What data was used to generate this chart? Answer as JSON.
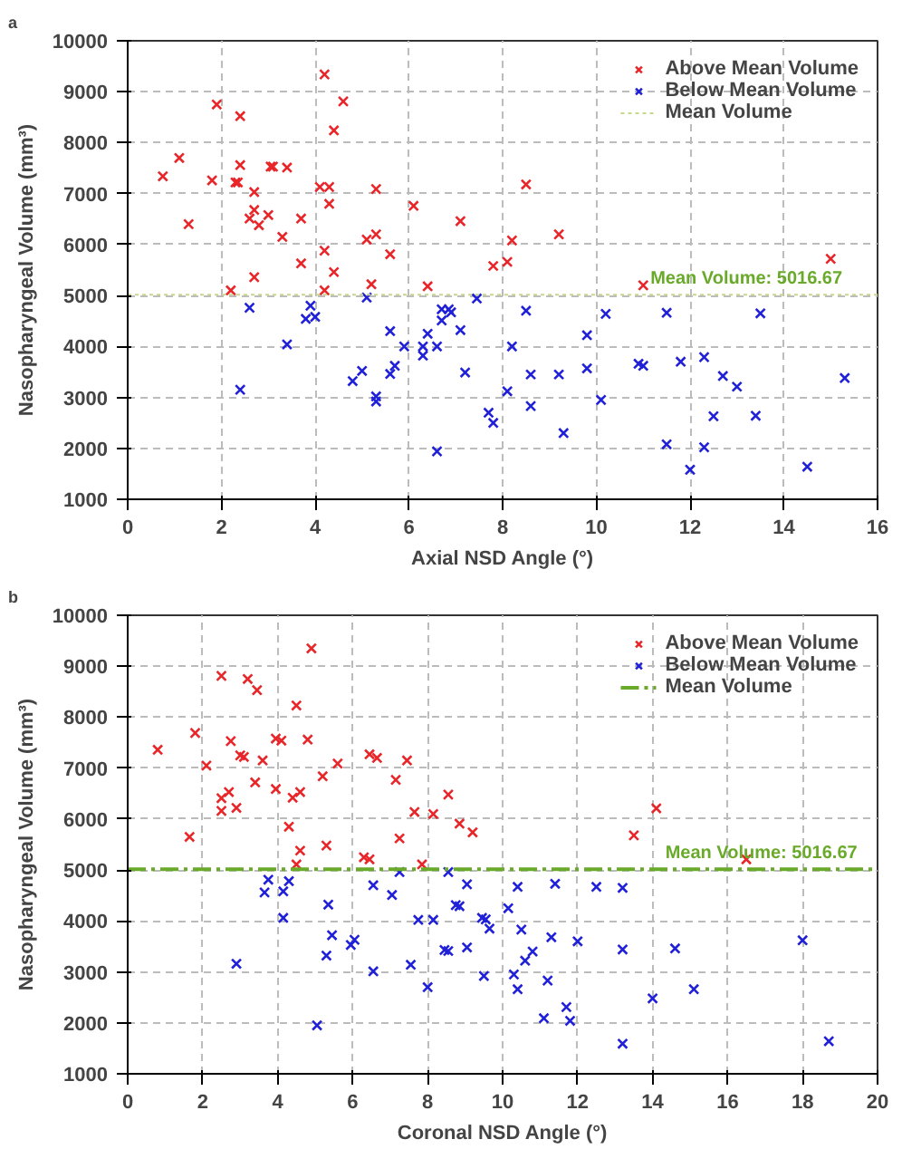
{
  "chart_data": [
    {
      "type": "scatter",
      "xlabel": "Axial NSD Angle (°)",
      "ylabel": "Nasopharyngeal Volume (mm³)",
      "annotations": [
        "a",
        {
          "text": "Mean Volume: 5016.67",
          "x": 13.2,
          "y": 5016.67
        }
      ],
      "xlim": [
        0,
        16
      ],
      "ylim": [
        1000,
        10000
      ],
      "xticks": [
        0,
        2,
        4,
        6,
        8,
        10,
        12,
        14,
        16
      ],
      "yticks": [
        1000,
        2000,
        3000,
        4000,
        5000,
        6000,
        7000,
        8000,
        9000,
        10000
      ],
      "grid": true,
      "legend": "top right",
      "marker": "cross",
      "ref_lines": [
        {
          "axis": "y",
          "value": 5016.67,
          "label": "Mean Volume",
          "color": "#c8d88a",
          "line_style": "dotted"
        }
      ],
      "series": [
        {
          "name": "Above Mean Volume",
          "color": "#e8262a",
          "x": [
            0.75,
            1.1,
            1.3,
            1.8,
            1.9,
            2.4,
            2.4,
            2.3,
            2.35,
            2.2,
            2.7,
            2.7,
            2.6,
            2.8,
            3.0,
            2.7,
            3.05,
            3.1,
            3.4,
            3.3,
            3.7,
            3.7,
            4.2,
            4.6,
            4.4,
            4.1,
            4.3,
            4.3,
            4.2,
            4.4,
            4.2,
            5.3,
            5.1,
            5.3,
            5.6,
            5.2,
            6.1,
            6.4,
            7.1,
            8.5,
            8.2,
            9.2,
            7.8,
            8.1,
            11.0,
            15.0
          ],
          "values": [
            7340,
            7700,
            6400,
            7260,
            8750,
            8520,
            7560,
            7220,
            7220,
            5100,
            7030,
            6680,
            6510,
            6380,
            6580,
            5360,
            7530,
            7530,
            7510,
            6150,
            6510,
            5630,
            9340,
            8810,
            8240,
            7130,
            7130,
            6800,
            5880,
            5460,
            5100,
            7090,
            6100,
            6200,
            5810,
            5220,
            6760,
            5180,
            6460,
            7180,
            6080,
            6200,
            5580,
            5660,
            5200,
            5720
          ]
        },
        {
          "name": "Below Mean Volume",
          "color": "#2020d8",
          "x": [
            2.6,
            2.4,
            3.4,
            3.9,
            3.8,
            4.0,
            5.1,
            4.8,
            5.0,
            5.3,
            5.3,
            5.6,
            5.6,
            5.7,
            5.9,
            6.3,
            6.3,
            6.4,
            6.6,
            6.6,
            6.7,
            6.7,
            6.85,
            6.9,
            7.1,
            7.2,
            7.45,
            7.7,
            7.8,
            8.5,
            8.2,
            8.1,
            8.6,
            8.6,
            9.2,
            9.3,
            9.8,
            9.8,
            10.1,
            10.2,
            10.9,
            11.0,
            11.5,
            11.5,
            11.8,
            12.0,
            12.3,
            12.3,
            12.5,
            12.7,
            13.0,
            13.4,
            13.5,
            14.5,
            15.3
          ],
          "values": [
            4760,
            3150,
            4040,
            4800,
            4540,
            4580,
            4960,
            3320,
            3520,
            3020,
            2920,
            4300,
            3460,
            3620,
            4000,
            4000,
            3820,
            4250,
            4000,
            1940,
            4730,
            4510,
            4730,
            4670,
            4320,
            3490,
            4940,
            2700,
            2500,
            4700,
            4000,
            3120,
            3450,
            2830,
            3450,
            2300,
            4220,
            3570,
            2950,
            4640,
            3660,
            3620,
            4660,
            2080,
            3700,
            1580,
            3790,
            2020,
            2630,
            3420,
            3210,
            2640,
            4650,
            1640,
            3380
          ]
        }
      ]
    },
    {
      "type": "scatter",
      "xlabel": "Coronal NSD Angle (°)",
      "ylabel": "Nasopharyngeal Volume (mm³)",
      "annotations": [
        "b",
        {
          "text": "Mean Volume: 5016.67",
          "x": 16.9,
          "y": 5016.67
        }
      ],
      "xlim": [
        0,
        20
      ],
      "ylim": [
        1000,
        10000
      ],
      "xticks": [
        0,
        2,
        4,
        6,
        8,
        10,
        12,
        14,
        16,
        18,
        20
      ],
      "yticks": [
        1000,
        2000,
        3000,
        4000,
        5000,
        6000,
        7000,
        8000,
        9000,
        10000
      ],
      "grid": true,
      "legend": "top right",
      "marker": "cross",
      "ref_lines": [
        {
          "axis": "y",
          "value": 5016.67,
          "label": "Mean Volume",
          "color": "#6aaa2a",
          "line_style": "dashed"
        }
      ],
      "series": [
        {
          "name": "Above Mean Volume",
          "color": "#e8262a",
          "x": [
            0.8,
            1.65,
            1.8,
            2.1,
            2.5,
            2.5,
            2.5,
            2.7,
            2.75,
            2.9,
            3.0,
            3.1,
            3.2,
            3.45,
            3.4,
            3.6,
            3.95,
            3.95,
            4.1,
            4.5,
            4.3,
            4.4,
            4.6,
            4.6,
            4.5,
            4.8,
            4.9,
            5.2,
            5.3,
            5.6,
            6.3,
            6.45,
            6.45,
            6.65,
            7.15,
            7.25,
            7.45,
            7.65,
            7.85,
            8.15,
            8.55,
            8.85,
            9.2,
            14.1,
            13.5,
            16.5
          ],
          "values": [
            7360,
            5650,
            7690,
            7050,
            8810,
            6410,
            6160,
            6530,
            7530,
            6220,
            7250,
            7220,
            8750,
            8530,
            6720,
            7150,
            6590,
            7580,
            7540,
            8230,
            5850,
            6420,
            6530,
            5380,
            5110,
            7560,
            9350,
            6840,
            5480,
            7090,
            5250,
            5210,
            7270,
            7200,
            6770,
            5620,
            7150,
            6140,
            5110,
            6100,
            6480,
            5910,
            5740,
            6210,
            5680,
            5210
          ]
        },
        {
          "name": "Below Mean Volume",
          "color": "#2020d8",
          "x": [
            3.75,
            3.65,
            4.3,
            4.15,
            4.15,
            5.35,
            5.45,
            5.3,
            5.05,
            2.9,
            5.95,
            6.05,
            6.55,
            6.55,
            7.05,
            7.25,
            7.55,
            7.75,
            8.15,
            8.0,
            8.55,
            8.45,
            8.55,
            8.75,
            8.85,
            9.05,
            9.05,
            9.45,
            9.55,
            9.65,
            9.5,
            10.15,
            10.4,
            10.5,
            10.3,
            10.4,
            10.6,
            10.8,
            11.3,
            11.4,
            11.2,
            11.7,
            11.8,
            11.1,
            12.0,
            12.5,
            13.2,
            13.2,
            13.2,
            14.0,
            14.6,
            15.1,
            18.0,
            18.7
          ],
          "values": [
            4810,
            4560,
            4780,
            4580,
            4060,
            4320,
            3720,
            3320,
            1950,
            3160,
            3530,
            3630,
            4700,
            3010,
            4510,
            4960,
            3140,
            4020,
            4020,
            2700,
            4960,
            3430,
            3410,
            4310,
            4290,
            4720,
            3480,
            4060,
            4030,
            3850,
            2920,
            4250,
            4670,
            3830,
            2950,
            2660,
            3220,
            3400,
            3680,
            4730,
            2830,
            2310,
            2040,
            2090,
            3600,
            4670,
            4650,
            3440,
            1590,
            2480,
            3460,
            2660,
            3620,
            1640
          ]
        }
      ]
    }
  ]
}
